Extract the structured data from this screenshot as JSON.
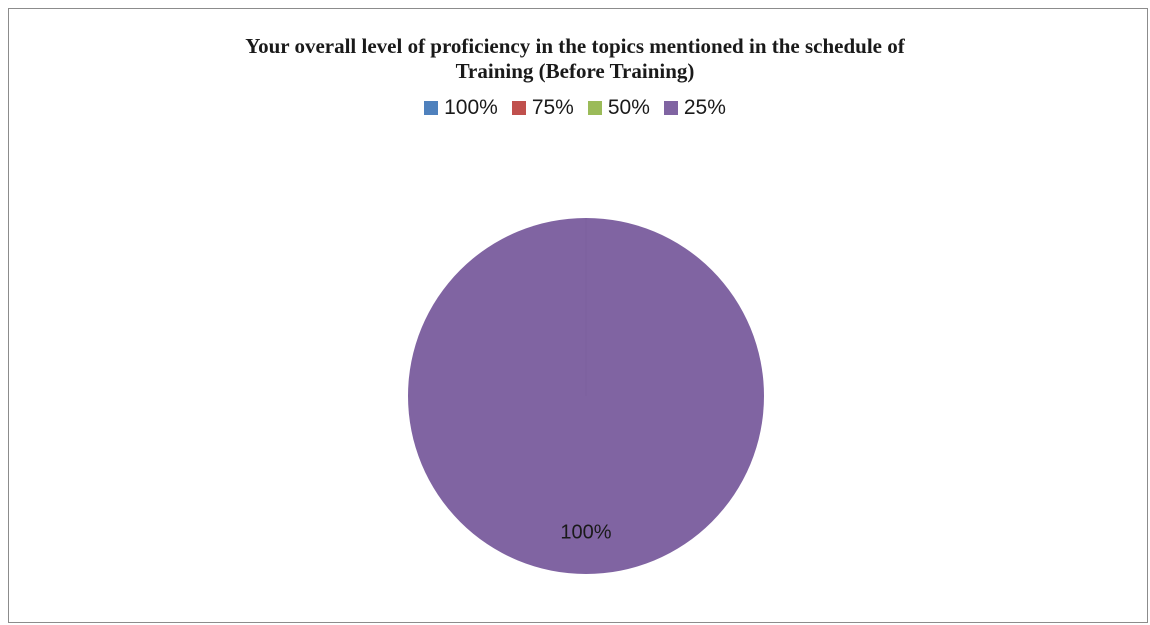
{
  "chart_data": {
    "type": "pie",
    "title_lines": [
      "Your overall level of proficiency in the topics mentioned in the schedule of",
      "Training (Before Training)"
    ],
    "categories": [
      "100%",
      "75%",
      "50%",
      "25%"
    ],
    "values": [
      0,
      0,
      0,
      100
    ],
    "data_labels": [
      "",
      "",
      "",
      "100%"
    ],
    "colors": [
      "#4f81bd",
      "#c0504d",
      "#9bbb59",
      "#8064a2"
    ],
    "legend_position": "top"
  }
}
